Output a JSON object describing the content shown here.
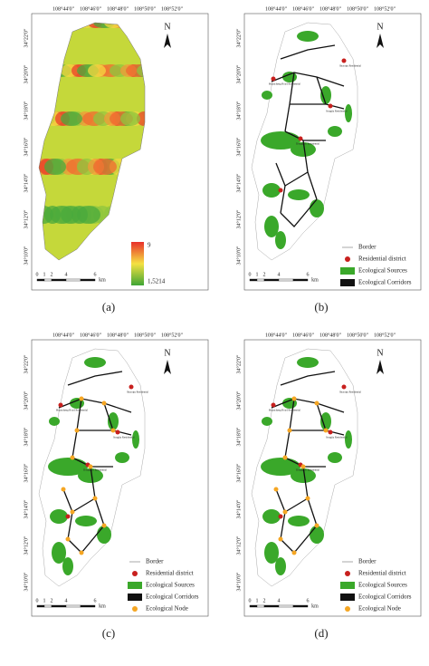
{
  "lon_labels": [
    "108°44'0\"",
    "108°46'0\"",
    "108°48'0\"",
    "108°50'0\"",
    "108°52'0\""
  ],
  "lat_labels": [
    "34°22'0\"",
    "34°20'0\"",
    "34°18'0\"",
    "34°16'0\"",
    "34°14'0\"",
    "34°12'0\"",
    "34°10'0\""
  ],
  "scale_labels": [
    "0",
    "1",
    "2",
    "4",
    "6",
    "km"
  ],
  "north": "N",
  "places": [
    "Huancheng Road Residential",
    "Shaoqiu Residential",
    "Songjia Residential",
    "Dongqiao Residential"
  ],
  "panels": [
    {
      "caption": "(a)",
      "legend": [
        "9",
        "1,5214"
      ]
    },
    {
      "caption": "(b)",
      "legend": [
        "Border",
        "Residential district",
        "Ecological Sources",
        "Ecological Corridors"
      ]
    },
    {
      "caption": "(c)",
      "legend": [
        "Border",
        "Residential district",
        "Ecological Sources",
        "Ecological Corridors",
        "Ecological Node"
      ]
    },
    {
      "caption": "(d)",
      "legend": [
        "Border",
        "Residential district",
        "Ecological Sources",
        "Ecological Corridors",
        "Ecological Node"
      ]
    }
  ]
}
